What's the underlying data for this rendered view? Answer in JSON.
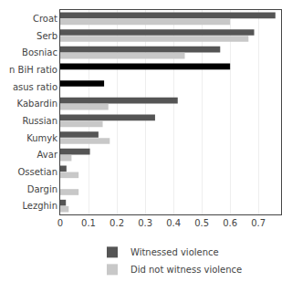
{
  "chart_data": {
    "type": "bar",
    "orientation": "horizontal",
    "categories": [
      "Croat",
      "Serb",
      "Bosniac",
      "n BiH ratio",
      "asus ratio",
      "Kabardin",
      "Russian",
      "Kumyk",
      "Avar",
      "Ossetian",
      "Dargin",
      "Lezghin"
    ],
    "series": [
      {
        "name": "Witnessed violence",
        "color": "#555555",
        "colors": [
          "#555555",
          "#555555",
          "#555555",
          "#000000",
          "#000000",
          "#555555",
          "#555555",
          "#555555",
          "#555555",
          "#555555",
          "#555555",
          "#555555"
        ],
        "values": [
          0.76,
          0.685,
          0.565,
          0.6,
          0.155,
          0.415,
          0.335,
          0.135,
          0.105,
          0.022,
          0.0,
          0.02
        ]
      },
      {
        "name": "Did not witness violence",
        "color": "#c8c8c8",
        "colors": [
          "#c8c8c8",
          "#c8c8c8",
          "#c8c8c8",
          "#000000",
          "#000000",
          "#c8c8c8",
          "#c8c8c8",
          "#c8c8c8",
          "#c8c8c8",
          "#c8c8c8",
          "#c8c8c8",
          "#c8c8c8"
        ],
        "values": [
          0.6,
          0.665,
          0.44,
          0.0,
          0.0,
          0.17,
          0.15,
          0.175,
          0.04,
          0.065,
          0.065,
          0.03
        ]
      }
    ],
    "xlim": [
      0,
      0.78
    ],
    "xticks": [
      0,
      0.1,
      0.2,
      0.3,
      0.4,
      0.5,
      0.6,
      0.7
    ],
    "grid": true,
    "legend": "bottom"
  }
}
